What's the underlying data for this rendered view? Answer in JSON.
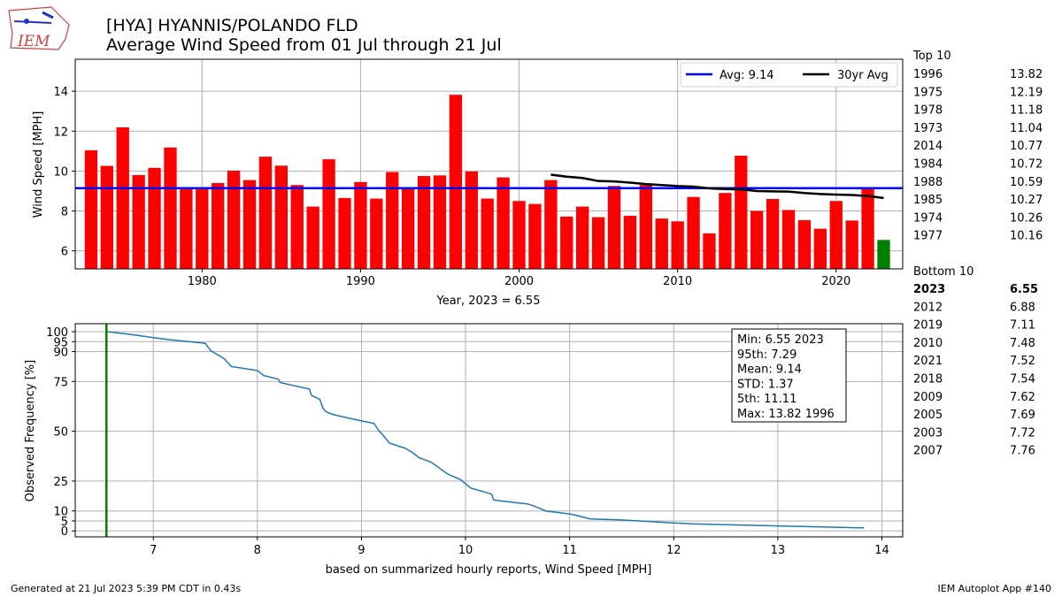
{
  "header": {
    "logo_text": "IEM",
    "title_line1": "[HYA] HYANNIS/POLANDO FLD",
    "title_line2": "Average Wind Speed from 01 Jul through 21 Jul"
  },
  "footer": {
    "left": "Generated at 21 Jul 2023 5:39 PM CDT in 0.43s",
    "right": "IEM Autoplot App #140"
  },
  "colors": {
    "bar": "#ff0000",
    "highlight_bar": "#008000",
    "avg_line": "#0000ff",
    "trailing_avg": "#000000",
    "cdf_line": "#1f77b4",
    "marker_line": "#008000",
    "grid": "#b0b0b0"
  },
  "chart_data": [
    {
      "type": "bar",
      "xlabel": "Year, 2023 = 6.55",
      "ylabel": "Wind Speed [MPH]",
      "xlim": [
        1972,
        2024.2
      ],
      "ylim": [
        5.1,
        15.6
      ],
      "xticks": [
        1980,
        1990,
        2000,
        2010,
        2020
      ],
      "yticks": [
        6,
        8,
        10,
        12,
        14
      ],
      "grid": true,
      "legend_placement": "top-right",
      "legend": [
        {
          "label": "Avg: 9.14",
          "color": "#0000ff"
        },
        {
          "label": "30yr Avg",
          "color": "#000000"
        }
      ],
      "average": 9.14,
      "highlight_year": 2023,
      "x": [
        1973,
        1974,
        1975,
        1976,
        1977,
        1978,
        1979,
        1980,
        1981,
        1982,
        1983,
        1984,
        1985,
        1986,
        1987,
        1988,
        1989,
        1990,
        1991,
        1992,
        1993,
        1994,
        1995,
        1996,
        1997,
        1998,
        1999,
        2000,
        2001,
        2002,
        2003,
        2004,
        2005,
        2006,
        2007,
        2008,
        2009,
        2010,
        2011,
        2012,
        2013,
        2014,
        2015,
        2016,
        2017,
        2018,
        2019,
        2020,
        2021,
        2022,
        2023
      ],
      "values": [
        11.04,
        10.26,
        12.19,
        9.8,
        10.16,
        11.18,
        9.15,
        9.15,
        9.4,
        10.02,
        9.55,
        10.72,
        10.27,
        9.3,
        8.22,
        10.59,
        8.65,
        9.45,
        8.62,
        9.95,
        9.15,
        9.75,
        9.78,
        13.82,
        9.98,
        8.62,
        9.68,
        8.5,
        8.35,
        9.55,
        7.72,
        8.22,
        7.69,
        9.25,
        7.76,
        9.3,
        7.62,
        7.48,
        8.7,
        6.88,
        8.9,
        10.77,
        8.0,
        8.6,
        8.05,
        7.54,
        7.11,
        8.5,
        7.52,
        9.1,
        6.55
      ],
      "series": [
        {
          "name": "30yr Avg",
          "x": [
            2002,
            2003,
            2004,
            2005,
            2006,
            2007,
            2008,
            2009,
            2010,
            2011,
            2012,
            2013,
            2014,
            2015,
            2016,
            2017,
            2018,
            2019,
            2020,
            2021,
            2022,
            2023
          ],
          "values": [
            9.82,
            9.72,
            9.65,
            9.5,
            9.48,
            9.42,
            9.35,
            9.3,
            9.25,
            9.22,
            9.13,
            9.1,
            9.08,
            9.0,
            8.98,
            8.97,
            8.9,
            8.85,
            8.82,
            8.8,
            8.75,
            8.65
          ]
        }
      ]
    },
    {
      "type": "line",
      "xlabel": "based on summarized hourly reports, Wind Speed [MPH]",
      "ylabel": "Observed Frequency [%]",
      "xlim": [
        6.25,
        14.2
      ],
      "ylim": [
        -3,
        104
      ],
      "xticks": [
        7,
        8,
        9,
        10,
        11,
        12,
        13,
        14
      ],
      "yticks": [
        0,
        5,
        10,
        25,
        50,
        75,
        90,
        95,
        100
      ],
      "grid": true,
      "marker_x": 6.55,
      "x": [
        6.55,
        6.8,
        7.0,
        7.15,
        7.5,
        7.55,
        7.68,
        7.75,
        8.0,
        8.06,
        8.2,
        8.22,
        8.3,
        8.5,
        8.52,
        8.6,
        8.63,
        8.66,
        8.72,
        8.8,
        9.0,
        9.12,
        9.17,
        9.2,
        9.27,
        9.3,
        9.42,
        9.5,
        9.55,
        9.67,
        9.83,
        9.95,
        10.05,
        10.25,
        10.27,
        10.35,
        10.6,
        10.68,
        10.77,
        11.0,
        11.05,
        11.2,
        11.5,
        12.0,
        12.2,
        13.0,
        13.83
      ],
      "values": [
        100,
        98.5,
        97,
        96,
        94.2,
        90.5,
        86.5,
        82.5,
        80.5,
        78,
        76.2,
        74.5,
        73.5,
        71.2,
        68,
        66,
        61.5,
        59.8,
        58.5,
        57.5,
        55.2,
        54,
        50,
        48.5,
        44,
        43.5,
        41.5,
        39,
        36.8,
        34.5,
        28.5,
        25.8,
        21.5,
        18.5,
        15.5,
        15,
        13.5,
        12,
        10,
        8.5,
        8,
        6,
        5.5,
        4,
        3.5,
        2.5,
        1.5
      ],
      "stats_box": [
        "Min: 6.55 2023",
        "95th: 7.29",
        "Mean: 9.14",
        "STD: 1.37",
        "5th: 11.11",
        "Max: 13.82 1996"
      ]
    }
  ],
  "side_table": {
    "top_header": "Top 10",
    "top": [
      {
        "year": "1996",
        "value": "13.82"
      },
      {
        "year": "1975",
        "value": "12.19"
      },
      {
        "year": "1978",
        "value": "11.18"
      },
      {
        "year": "1973",
        "value": "11.04"
      },
      {
        "year": "2014",
        "value": "10.77"
      },
      {
        "year": "1984",
        "value": "10.72"
      },
      {
        "year": "1988",
        "value": "10.59"
      },
      {
        "year": "1985",
        "value": "10.27"
      },
      {
        "year": "1974",
        "value": "10.26"
      },
      {
        "year": "1977",
        "value": "10.16"
      }
    ],
    "bottom_header": "Bottom 10",
    "bottom": [
      {
        "year": "2023",
        "value": "6.55",
        "bold": true
      },
      {
        "year": "2012",
        "value": "6.88"
      },
      {
        "year": "2019",
        "value": "7.11"
      },
      {
        "year": "2010",
        "value": "7.48"
      },
      {
        "year": "2021",
        "value": "7.52"
      },
      {
        "year": "2018",
        "value": "7.54"
      },
      {
        "year": "2009",
        "value": "7.62"
      },
      {
        "year": "2005",
        "value": "7.69"
      },
      {
        "year": "2003",
        "value": "7.72"
      },
      {
        "year": "2007",
        "value": "7.76"
      }
    ]
  }
}
